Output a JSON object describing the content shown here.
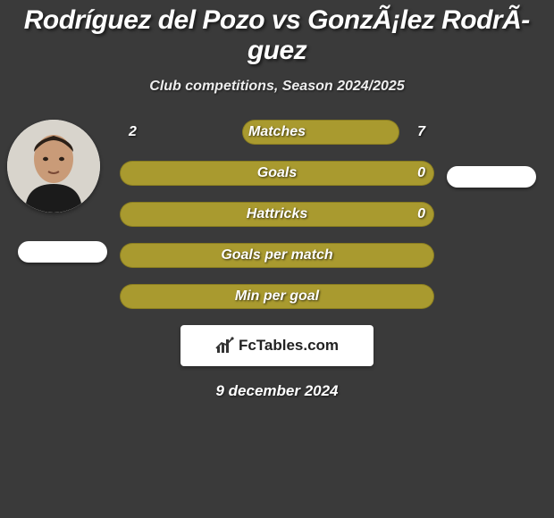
{
  "title": "Rodríguez del Pozo vs GonzÃ¡lez RodrÃ­guez",
  "title_fontsize": 30,
  "subtitle": "Club competitions, Season 2024/2025",
  "subtitle_fontsize": 16,
  "date": "9 december 2024",
  "date_fontsize": 17,
  "watermark": {
    "text": "FcTables.com",
    "fontsize": 17
  },
  "background_color": "#3a3a3a",
  "bar_color": "#a99a2f",
  "bar_border_color": "#8a7d20",
  "text_color": "#ffffff",
  "avatar_left": {
    "has_photo": true
  },
  "avatar_right": {
    "has_photo": false
  },
  "stats": [
    {
      "label": "Matches",
      "left_value": "2",
      "right_value": "7",
      "left_pct": 22,
      "right_pct": 78
    },
    {
      "label": "Goals",
      "left_value": "",
      "right_value": "0",
      "left_pct": 100,
      "right_pct": 100
    },
    {
      "label": "Hattricks",
      "left_value": "",
      "right_value": "0",
      "left_pct": 100,
      "right_pct": 100
    },
    {
      "label": "Goals per match",
      "left_value": "",
      "right_value": "",
      "left_pct": 100,
      "right_pct": 100
    },
    {
      "label": "Min per goal",
      "left_value": "",
      "right_value": "",
      "left_pct": 100,
      "right_pct": 100
    }
  ],
  "label_fontsize": 16,
  "value_fontsize": 16
}
